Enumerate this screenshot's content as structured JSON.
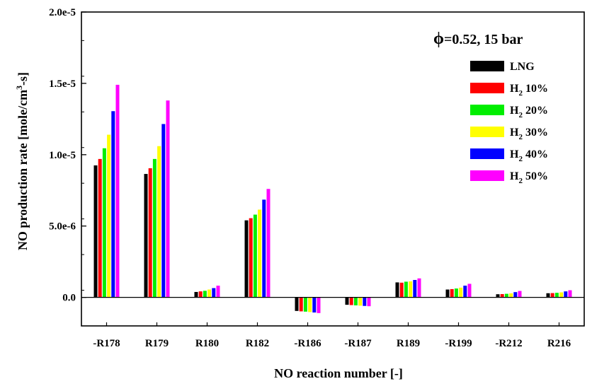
{
  "chart_data": {
    "type": "bar",
    "title": "",
    "annotation": {
      "symbol": "ϕ",
      "text": "=0.52, 15 bar"
    },
    "xlabel": "NO reaction number [-]",
    "ylabel": {
      "text": "NO production rate [mole/cm",
      "superscript": "3",
      "suffix": "-s]"
    },
    "ylim": [
      -2e-06,
      2e-05
    ],
    "yticks": [
      {
        "value": 0,
        "label": "0.0"
      },
      {
        "value": 5e-06,
        "label": "5.0e-6"
      },
      {
        "value": 1e-05,
        "label": "1.0e-5"
      },
      {
        "value": 1.5e-05,
        "label": "1.5e-5"
      },
      {
        "value": 2e-05,
        "label": "2.0e-5"
      }
    ],
    "grid": false,
    "legend_position": "top-right",
    "categories": [
      "-R178",
      "R179",
      "R180",
      "R182",
      "-R186",
      "-R187",
      "R189",
      "-R199",
      "-R212",
      "R216"
    ],
    "series": [
      {
        "name": "LNG",
        "subscript": "",
        "color": "#000000",
        "values": [
          9.25e-06,
          8.65e-06,
          3.8e-07,
          5.4e-06,
          -9.5e-07,
          -5.2e-07,
          1.05e-06,
          5.5e-07,
          2.2e-07,
          2.9e-07
        ]
      },
      {
        "name": "H",
        "subscript": "2",
        "suffix": " 10%",
        "color": "#ff0000",
        "values": [
          9.7e-06,
          9.05e-06,
          4.2e-07,
          5.55e-06,
          -9.8e-07,
          -5.4e-07,
          1.03e-06,
          5.8e-07,
          2.3e-07,
          3e-07
        ]
      },
      {
        "name": "H",
        "subscript": "2",
        "suffix": " 20%",
        "color": "#00ee00",
        "values": [
          1.045e-05,
          9.7e-06,
          4.6e-07,
          5.8e-06,
          -1e-06,
          -5.6e-07,
          1.1e-06,
          6.2e-07,
          2.5e-07,
          3.2e-07
        ]
      },
      {
        "name": "H",
        "subscript": "2",
        "suffix": " 30%",
        "color": "#ffff00",
        "values": [
          1.14e-05,
          1.06e-05,
          5.5e-07,
          6.15e-06,
          -1.03e-06,
          -5.8e-07,
          1.12e-06,
          6.8e-07,
          2.8e-07,
          3.5e-07
        ]
      },
      {
        "name": "H",
        "subscript": "2",
        "suffix": " 40%",
        "color": "#0000ff",
        "values": [
          1.305e-05,
          1.215e-05,
          6.5e-07,
          6.85e-06,
          -1.06e-06,
          -6e-07,
          1.22e-06,
          8.2e-07,
          3.7e-07,
          4.2e-07
        ]
      },
      {
        "name": "H",
        "subscript": "2",
        "suffix": " 50%",
        "color": "#ff00ff",
        "values": [
          1.49e-05,
          1.38e-05,
          8.2e-07,
          7.6e-06,
          -1.1e-06,
          -6.2e-07,
          1.33e-06,
          9.5e-07,
          4.5e-07,
          5e-07
        ]
      }
    ]
  }
}
